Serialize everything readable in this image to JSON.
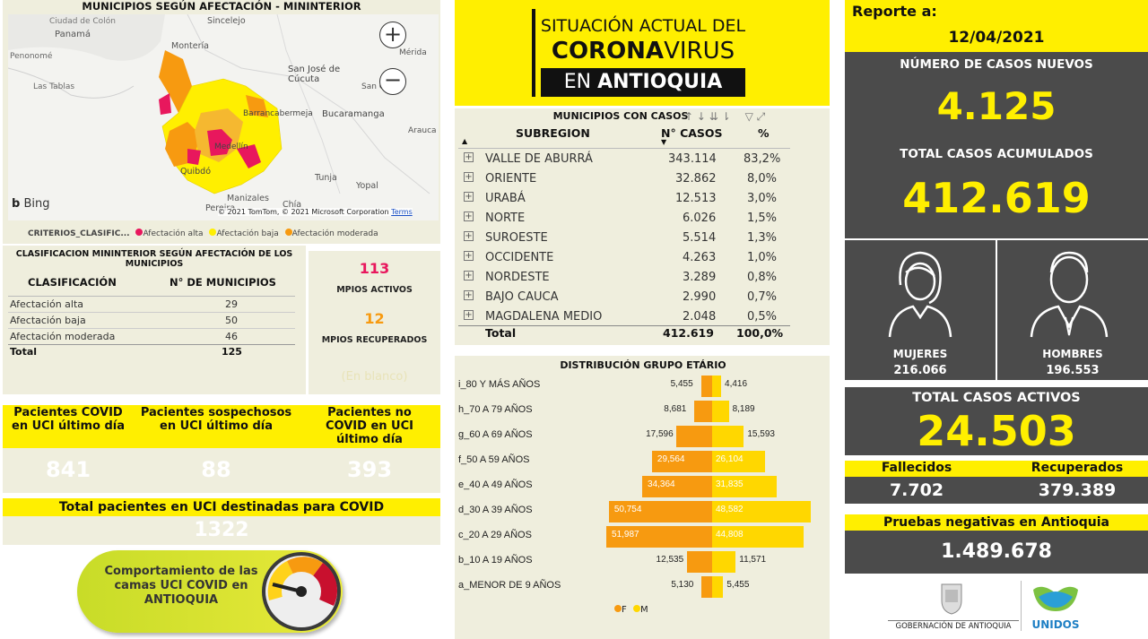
{
  "map": {
    "title": "MUNICIPIOS SEGÚN AFECTACIÓN - MININTERIOR",
    "places": [
      "Ciudad de Colón",
      "Panamá",
      "Penonomé",
      "Las Tablas",
      "Sincelejo",
      "Montería",
      "Mérida",
      "San José de Cúcuta",
      "San Cri",
      "Barrancabermeja",
      "Bucaramanga",
      "Arauca",
      "Medellín",
      "Quibdó",
      "Tunja",
      "Yopal",
      "Manizales",
      "Pereira",
      "Chía"
    ],
    "bing": "Bing",
    "copyright": "© 2021 TomTom, © 2021 Microsoft Corporation",
    "terms": "Terms",
    "legend_title": "CRITERIOS_CLASIFIC...",
    "legend": [
      {
        "label": "Afectación alta",
        "color": "#e8175d"
      },
      {
        "label": "Afectación baja",
        "color": "#ffef00"
      },
      {
        "label": "Afectación moderada",
        "color": "#f79a10"
      }
    ]
  },
  "classification": {
    "title": "CLASIFICACION MININTERIOR SEGÚN AFECTACIÓN DE LOS MUNICIPIOS",
    "col1": "CLASIFICACIÓN",
    "col2": "N° DE MUNICIPIOS",
    "rows": [
      {
        "label": "Afectación alta",
        "value": "29"
      },
      {
        "label": "Afectación baja",
        "value": "50"
      },
      {
        "label": "Afectación moderada",
        "value": "46"
      }
    ],
    "total_label": "Total",
    "total_value": "125"
  },
  "mpios": {
    "active_value": "113",
    "active_label": "MPIOS ACTIVOS",
    "recovered_value": "12",
    "recovered_label": "MPIOS RECUPERADOS",
    "faded": "(En blanco)"
  },
  "uci": {
    "h1": "Pacientes COVID en UCI último día",
    "h2": "Pacientes sospechosos en UCI último día",
    "h3": "Pacientes no COVID en UCI último día",
    "v1": "841",
    "v2": "88",
    "v3": "393",
    "total_label": "Total pacientes en UCI destinadas para COVID",
    "total_value": "1322",
    "button": "Comportamiento de las camas UCI COVID en ANTIOQUIA"
  },
  "banner": {
    "line1": "SITUACIÓN ACTUAL DEL",
    "line2a": "CORONA",
    "line2b": "VIRUS",
    "line3a": "EN ",
    "line3b": "ANTIOQUIA"
  },
  "subregion": {
    "title": "MUNICIPIOS CON CASOS",
    "col1": "SUBREGION",
    "col2": "N° CASOS",
    "col3": "%",
    "rows": [
      {
        "name": "VALLE DE ABURRÁ",
        "cases": "343.114",
        "pct": "83,2%"
      },
      {
        "name": "ORIENTE",
        "cases": "32.862",
        "pct": "8,0%"
      },
      {
        "name": "URABÁ",
        "cases": "12.513",
        "pct": "3,0%"
      },
      {
        "name": "NORTE",
        "cases": "6.026",
        "pct": "1,5%"
      },
      {
        "name": "SUROESTE",
        "cases": "5.514",
        "pct": "1,3%"
      },
      {
        "name": "OCCIDENTE",
        "cases": "4.263",
        "pct": "1,0%"
      },
      {
        "name": "NORDESTE",
        "cases": "3.289",
        "pct": "0,8%"
      },
      {
        "name": "BAJO CAUCA",
        "cases": "2.990",
        "pct": "0,7%"
      },
      {
        "name": "MAGDALENA MEDIO",
        "cases": "2.048",
        "pct": "0,5%"
      }
    ],
    "total_label": "Total",
    "total_cases": "412.619",
    "total_pct": "100,0%"
  },
  "age": {
    "title": "DISTRIBUCIÓN GRUPO ETÁRIO",
    "legend_f": "F",
    "legend_m": "M",
    "colors": {
      "f": "#f79a10",
      "m": "#ffd700"
    },
    "groups": [
      {
        "label": "i_80 Y MÁS AÑOS",
        "f": 5455,
        "m": 4416,
        "f_txt": "5,455",
        "m_txt": "4,416"
      },
      {
        "label": "h_70 A 79 AÑOS",
        "f": 8681,
        "m": 8189,
        "f_txt": "8,681",
        "m_txt": "8,189"
      },
      {
        "label": "g_60 A 69 AÑOS",
        "f": 17596,
        "m": 15593,
        "f_txt": "17,596",
        "m_txt": "15,593"
      },
      {
        "label": "f_50 A 59 AÑOS",
        "f": 29564,
        "m": 26104,
        "f_txt": "29,564",
        "m_txt": "26,104"
      },
      {
        "label": "e_40 A 49 AÑOS",
        "f": 34364,
        "m": 31835,
        "f_txt": "34,364",
        "m_txt": "31,835"
      },
      {
        "label": "d_30 A 39 AÑOS",
        "f": 50754,
        "m": 48582,
        "f_txt": "50,754",
        "m_txt": "48,582"
      },
      {
        "label": "c_20 A 29 AÑOS",
        "f": 51987,
        "m": 44808,
        "f_txt": "51,987",
        "m_txt": "44,808"
      },
      {
        "label": "b_10 A 19 AÑOS",
        "f": 12535,
        "m": 11571,
        "f_txt": "12,535",
        "m_txt": "11,571"
      },
      {
        "label": "a_MENOR DE 9 AÑOS",
        "f": 5130,
        "m": 5455,
        "f_txt": "5,130",
        "m_txt": "5,455"
      }
    ]
  },
  "report": {
    "label": "Reporte a:",
    "date": "12/04/2021",
    "new_label": "NÚMERO DE CASOS NUEVOS",
    "new_value": "4.125",
    "acc_label": "TOTAL CASOS ACUMULADOS",
    "acc_value": "412.619",
    "women_label": "MUJERES",
    "women_value": "216.066",
    "men_label": "HOMBRES",
    "men_value": "196.553",
    "active_label": "TOTAL CASOS ACTIVOS",
    "active_value": "24.503",
    "deaths_label": "Fallecidos",
    "deaths_value": "7.702",
    "recovered_label": "Recuperados",
    "recovered_value": "379.389",
    "tests_label": "Pruebas negativas en Antioquia",
    "tests_value": "1.489.678",
    "gov_label": "GOBERNACIÓN DE ANTIOQUIA",
    "unidos": "UNIDOS"
  }
}
